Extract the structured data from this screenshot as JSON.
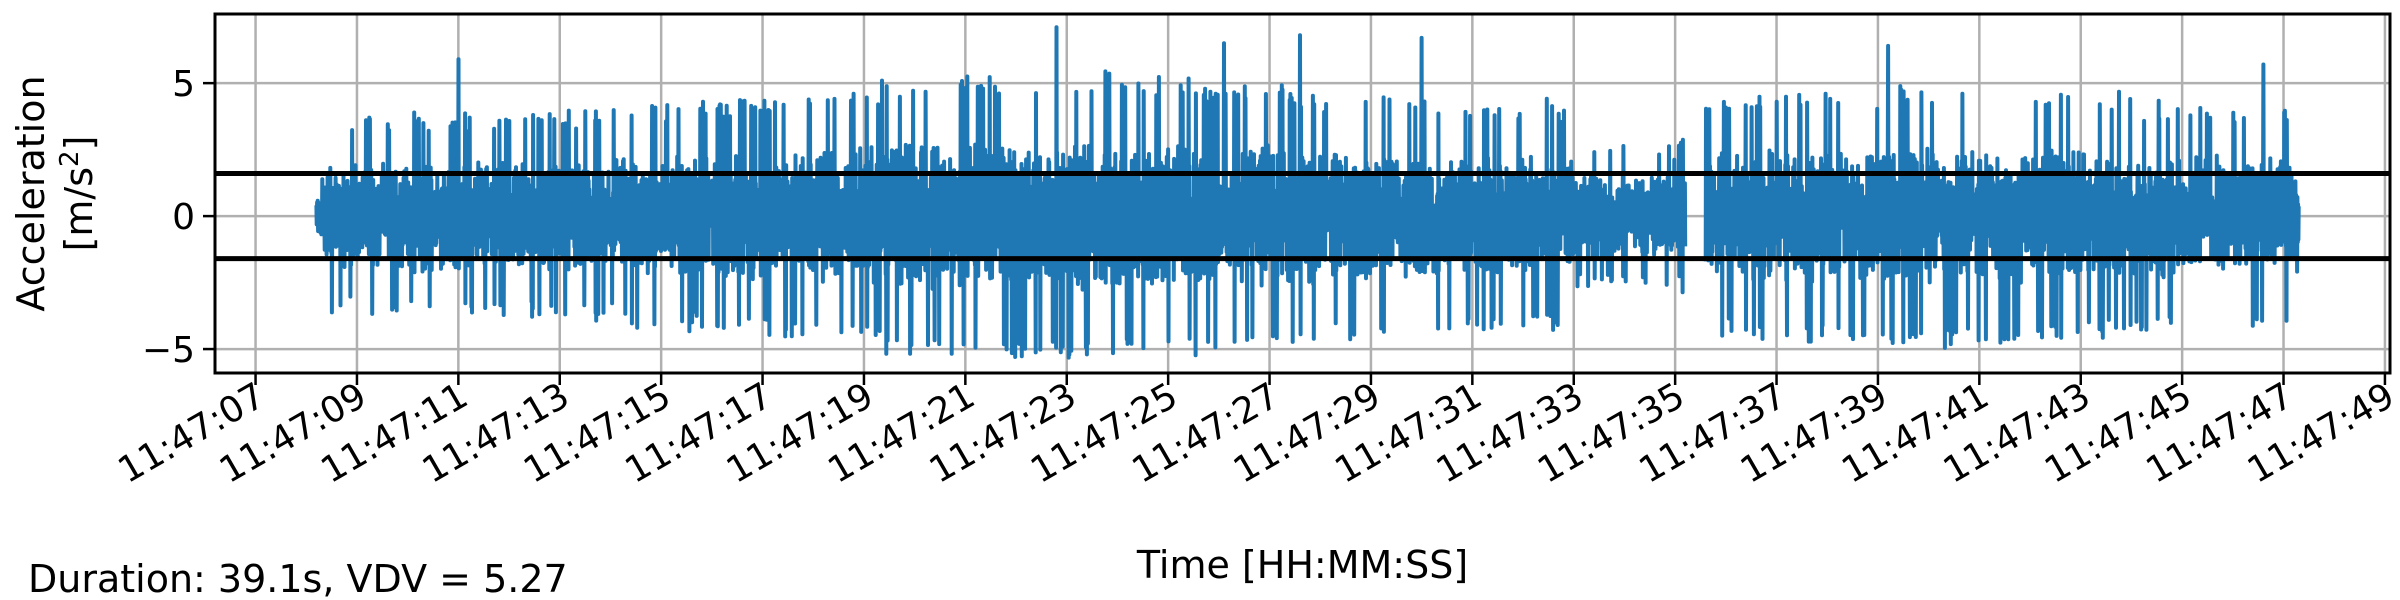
{
  "chart_data": {
    "type": "line",
    "title": "",
    "xlabel": "Time [HH:MM:SS]",
    "ylabel_line1": "Acceleration",
    "ylabel_line2": "[m/s",
    "ylabel_sup": "2",
    "ylabel_close": "]",
    "footnote": "Duration: 39.1s, VDV = 5.27",
    "grid": true,
    "xlim": [
      -0.8,
      42.1
    ],
    "ylim": [
      -5.9,
      7.6
    ],
    "x_ticks": [
      0,
      2,
      4,
      6,
      8,
      10,
      12,
      14,
      16,
      18,
      20,
      22,
      24,
      26,
      28,
      30,
      32,
      34,
      36,
      38,
      40,
      42
    ],
    "x_tick_labels": [
      "11:47:07",
      "11:47:09",
      "11:47:11",
      "11:47:13",
      "11:47:15",
      "11:47:17",
      "11:47:19",
      "11:47:21",
      "11:47:23",
      "11:47:25",
      "11:47:27",
      "11:47:29",
      "11:47:31",
      "11:47:33",
      "11:47:35",
      "11:47:37",
      "11:47:39",
      "11:47:41",
      "11:47:43",
      "11:47:45",
      "11:47:47",
      "11:47:49"
    ],
    "y_ticks": [
      -5,
      0,
      5
    ],
    "y_tick_labels": [
      "−5",
      "0",
      "5"
    ],
    "threshold_lines": [
      1.6,
      -1.6
    ],
    "series": [
      {
        "color": "#1f77b4",
        "time_start_s": 1.2,
        "time_end_s": 40.3,
        "gap_start_s": 28.2,
        "gap_end_s": 28.6,
        "peaks": [
          {
            "t": 4.0,
            "v": 5.9
          },
          {
            "t": 15.8,
            "v": 7.1
          },
          {
            "t": 16.4,
            "v": -5.2
          },
          {
            "t": 19.1,
            "v": 6.5
          },
          {
            "t": 20.6,
            "v": 6.8
          },
          {
            "t": 23.0,
            "v": 6.7
          },
          {
            "t": 32.2,
            "v": 6.4
          },
          {
            "t": 39.6,
            "v": 5.7
          }
        ]
      }
    ]
  }
}
